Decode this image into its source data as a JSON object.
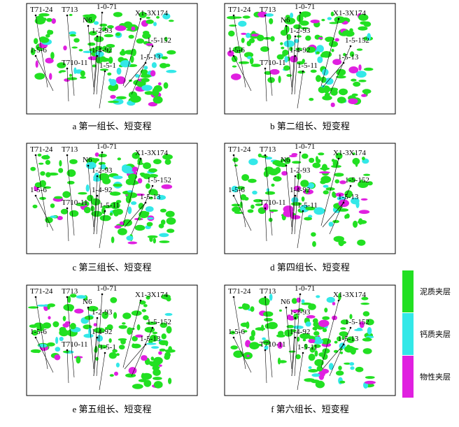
{
  "panels": [
    {
      "caption": "a 第一组长、短变程",
      "wells": [
        "T71-24",
        "T713",
        "N6",
        "1-0-71",
        "X1-3X174",
        "1-5-6",
        "1-2-93",
        "1-4-92",
        "1-5-152",
        "1-5-13",
        "T710-11",
        "1-5-1"
      ]
    },
    {
      "caption": "b 第二组长、短变程",
      "wells": [
        "T71-24",
        "T713",
        "N6",
        "1-0-71",
        "X1-3X174",
        "1-5-6",
        "1-2-93",
        "1-4-92",
        "1-5-152",
        "1-5-13",
        "T710-11",
        "1-5-11"
      ]
    },
    {
      "caption": "c 第三组长、短变程",
      "wells": [
        "T71-24",
        "T713",
        "N6",
        "1-0-71",
        "X1-3X174",
        "1-5-6",
        "1-2-93",
        "1-4-92",
        "1-5-152",
        "1-5-13",
        "T710-11",
        "1-5-11"
      ]
    },
    {
      "caption": "d 第四组长、短变程",
      "wells": [
        "T71-24",
        "T713",
        "N6",
        "1-0-71",
        "X1-3X174",
        "1-5-6",
        "1-2-93",
        "1-4-92",
        "1-5-152",
        "1-5-13",
        "T710-11",
        "1-5-11"
      ]
    },
    {
      "caption": "e 第五组长、短变程",
      "wells": [
        "T71-24",
        "T713",
        "N6",
        "1-0-71",
        "X1-3X174",
        "1-5-6",
        "1-2-93",
        "1-4-92",
        "1-5-152",
        "1-5-13",
        "T710-11",
        "1-5-1"
      ]
    },
    {
      "caption": "f 第六组长、短变程",
      "wells": [
        "T71-24",
        "T713",
        "N6",
        "1-0-71",
        "X1-3X174",
        "1-5-6",
        "1-2-93",
        "1-4-92",
        "1-5-152",
        "1-5-13",
        "T710-11",
        "1-5-11"
      ]
    }
  ],
  "legend": [
    {
      "label": "泥质夹层",
      "color": "#22e022"
    },
    {
      "label": "钙质夹层",
      "color": "#33e8e8"
    },
    {
      "label": "物性夹层",
      "color": "#e020e0"
    }
  ]
}
